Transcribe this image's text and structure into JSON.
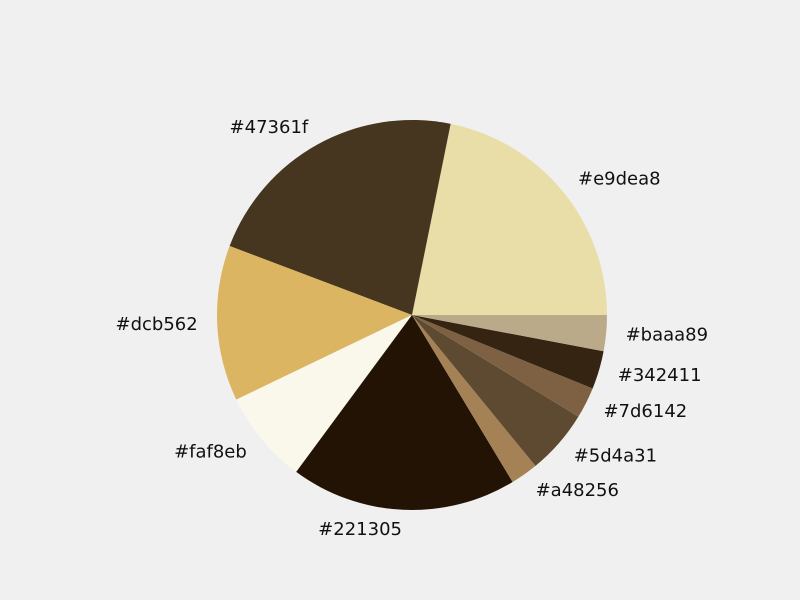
{
  "chart_data": {
    "type": "pie",
    "start_angle_deg": 0,
    "direction": "counterclockwise",
    "slices": [
      {
        "label": "#e9dea8",
        "color": "#e9dea8",
        "value": 22.0
      },
      {
        "label": "#47361f",
        "color": "#47361f",
        "value": 22.6
      },
      {
        "label": "#dcb562",
        "color": "#dcb562",
        "value": 13.0
      },
      {
        "label": "#faf8eb",
        "color": "#faf8eb",
        "value": 7.8
      },
      {
        "label": "#221305",
        "color": "#221305",
        "value": 18.9
      },
      {
        "label": "#a48256",
        "color": "#a48256",
        "value": 2.3
      },
      {
        "label": "#5d4a31",
        "color": "#5d4a31",
        "value": 5.4
      },
      {
        "label": "#7d6142",
        "color": "#7d6142",
        "value": 2.6
      },
      {
        "label": "#342411",
        "color": "#342411",
        "value": 3.2
      },
      {
        "label": "#baaa89",
        "color": "#baaa89",
        "value": 3.0
      }
    ]
  }
}
